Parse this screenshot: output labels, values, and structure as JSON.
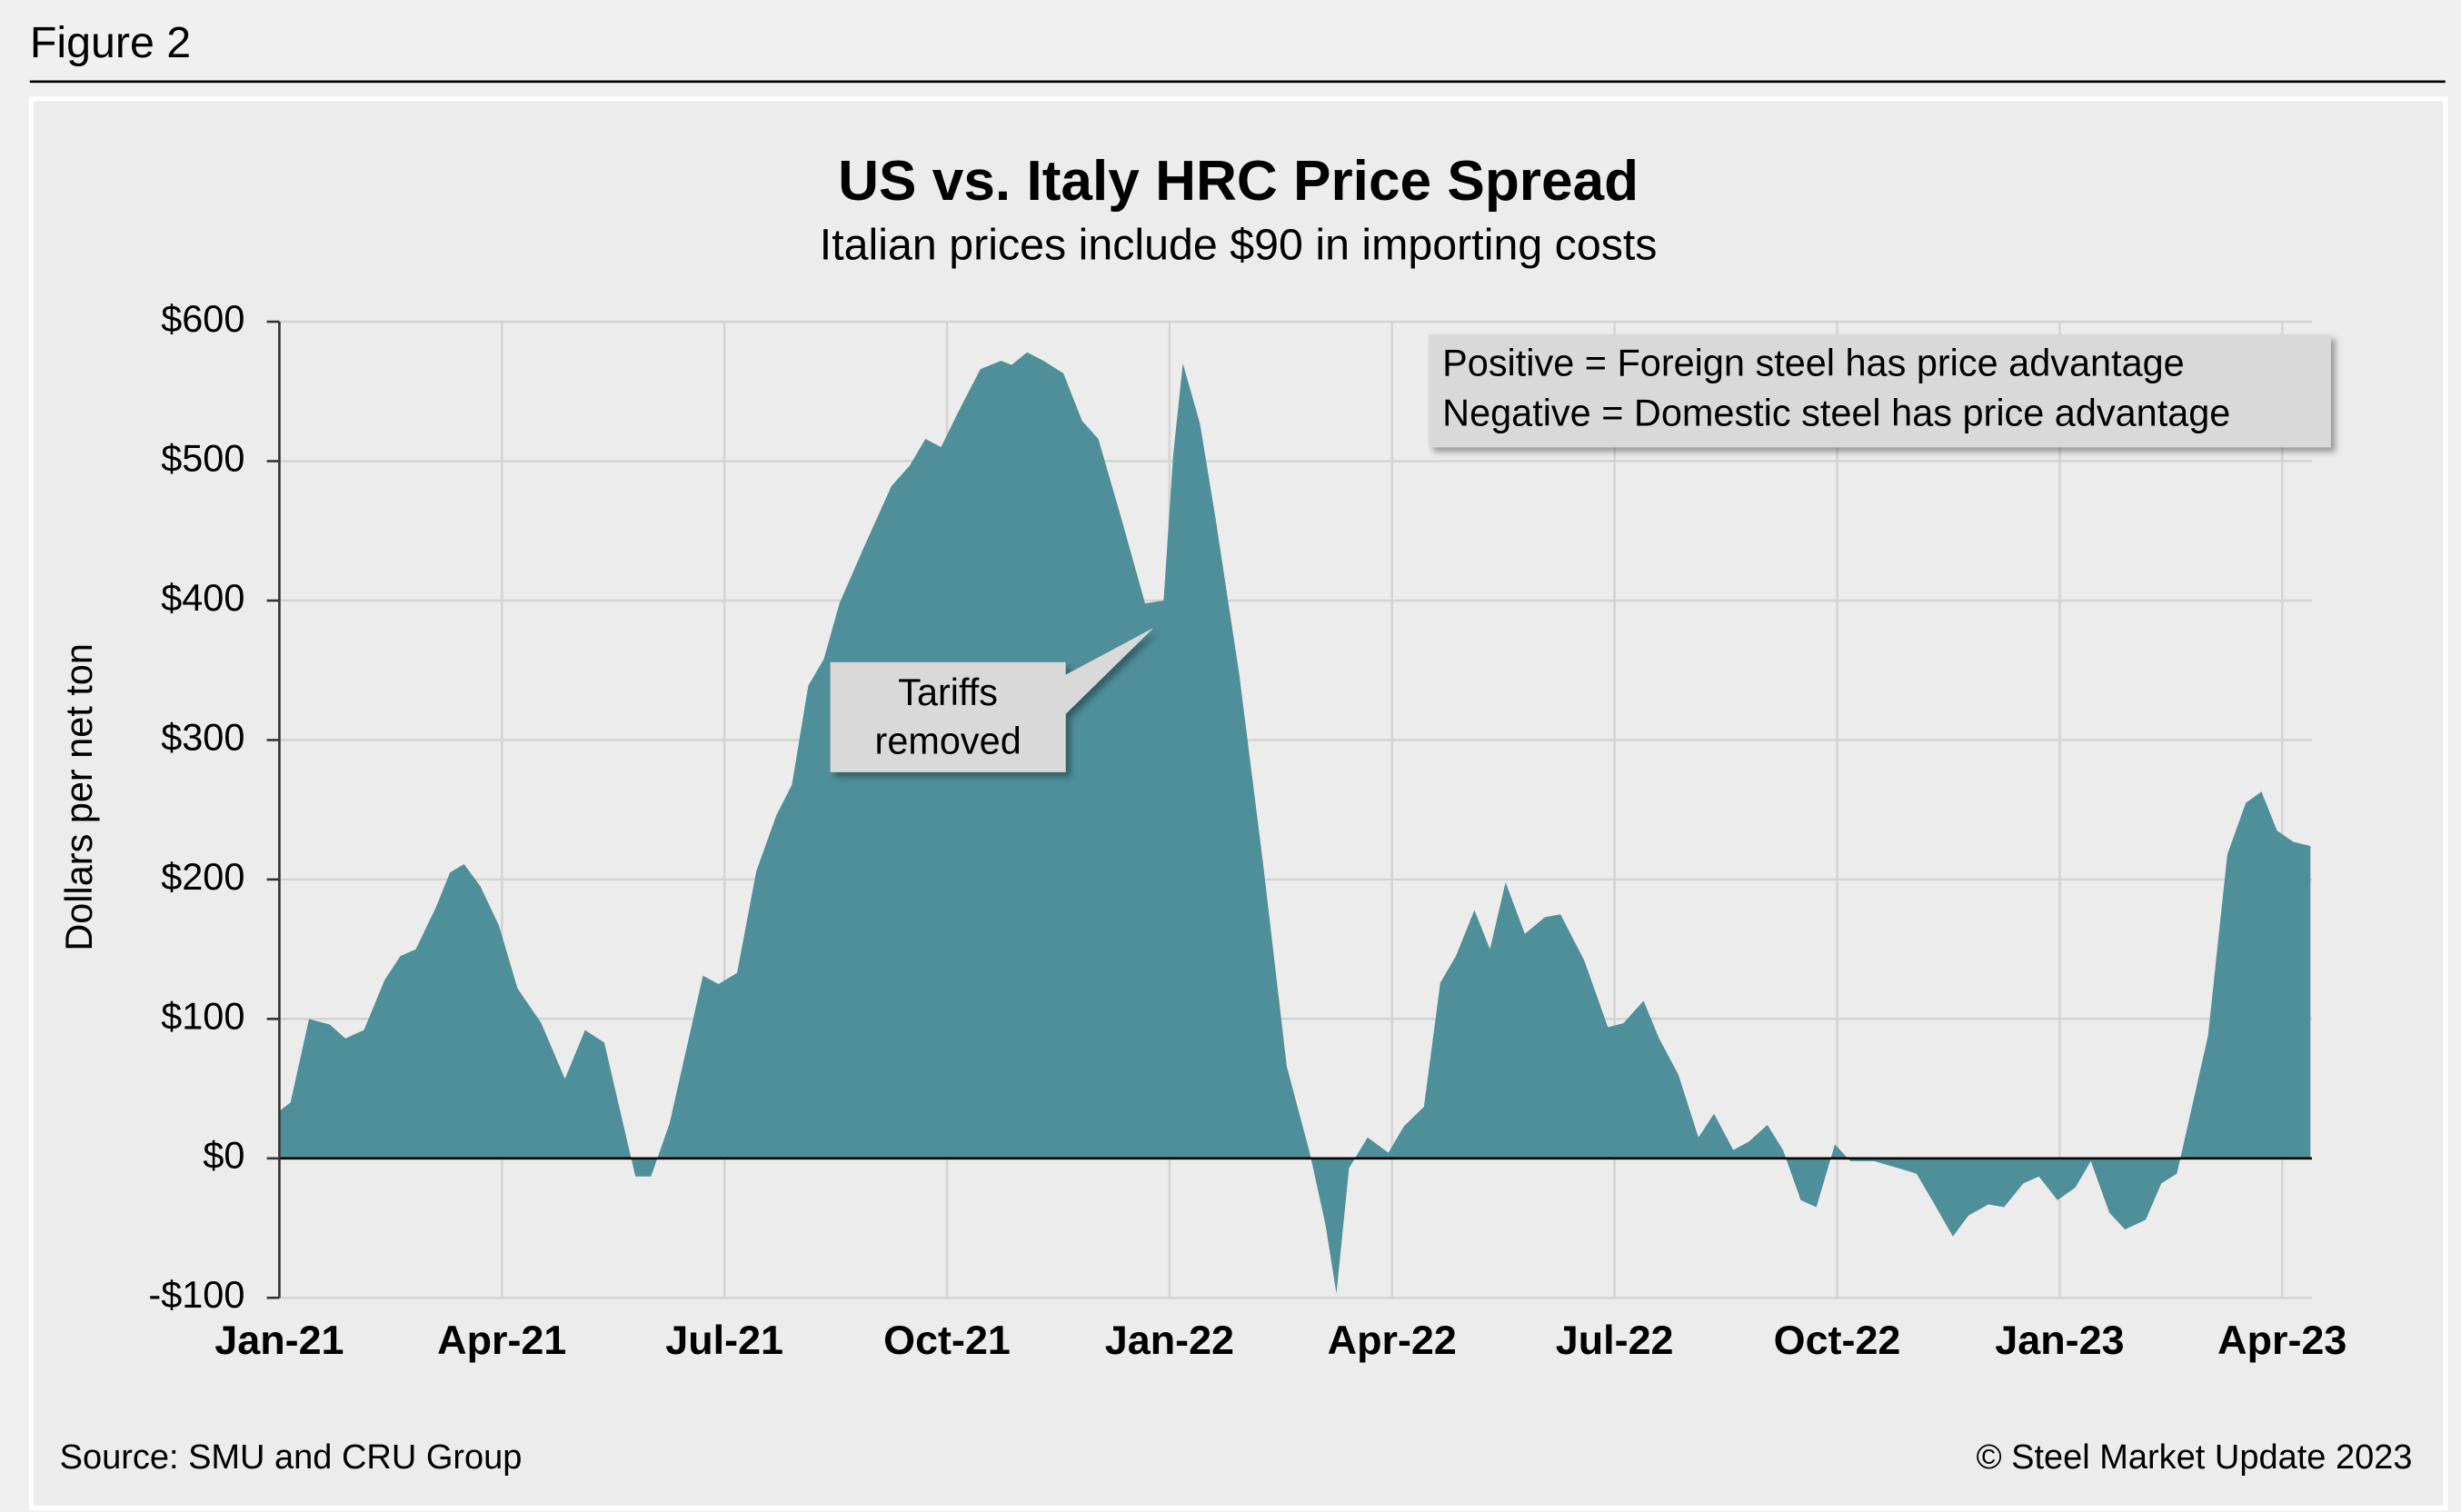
{
  "figure_label": "Figure 2",
  "chart_data": {
    "type": "area",
    "title": "US vs. Italy HRC Price Spread",
    "subtitle": "Italian prices include $90 in importing costs",
    "y_label": "Dollars per net ton",
    "color": "#4f8f99",
    "grid": true,
    "xlim": [
      0,
      27.4
    ],
    "ylim": [
      -100,
      600
    ],
    "xticks": [
      {
        "value": 0,
        "label": "Jan-21"
      },
      {
        "value": 3,
        "label": "Apr-21"
      },
      {
        "value": 6,
        "label": "Jul-21"
      },
      {
        "value": 9,
        "label": "Oct-21"
      },
      {
        "value": 12,
        "label": "Jan-22"
      },
      {
        "value": 15,
        "label": "Apr-22"
      },
      {
        "value": 18,
        "label": "Jul-22"
      },
      {
        "value": 21,
        "label": "Oct-22"
      },
      {
        "value": 24,
        "label": "Jan-23"
      },
      {
        "value": 27,
        "label": "Apr-23"
      }
    ],
    "yticks": [
      {
        "value": -100,
        "label": "-$100"
      },
      {
        "value": 0,
        "label": "$0"
      },
      {
        "value": 100,
        "label": "$100"
      },
      {
        "value": 200,
        "label": "$200"
      },
      {
        "value": 300,
        "label": "$300"
      },
      {
        "value": 400,
        "label": "$400"
      },
      {
        "value": 500,
        "label": "$500"
      },
      {
        "value": 600,
        "label": "$600"
      }
    ],
    "x": [
      0,
      0.15,
      0.4,
      0.68,
      0.89,
      1.14,
      1.42,
      1.63,
      1.84,
      2.11,
      2.3,
      2.49,
      2.71,
      2.96,
      3.21,
      3.53,
      3.85,
      4.12,
      4.38,
      4.8,
      5.01,
      5.26,
      5.71,
      5.92,
      6.17,
      6.43,
      6.7,
      6.91,
      7.13,
      7.34,
      7.55,
      7.87,
      8.25,
      8.5,
      8.71,
      8.92,
      9.13,
      9.45,
      9.73,
      9.87,
      10.08,
      10.3,
      10.57,
      10.82,
      11.04,
      11.35,
      11.67,
      11.92,
      12.05,
      12.18,
      12.41,
      12.62,
      12.94,
      13.26,
      13.58,
      13.89,
      14.1,
      14.25,
      14.42,
      14.67,
      14.95,
      15.16,
      15.43,
      15.65,
      15.86,
      16.11,
      16.32,
      16.53,
      16.79,
      17.06,
      17.27,
      17.59,
      17.91,
      18.12,
      18.39,
      18.6,
      18.86,
      19.13,
      19.34,
      19.6,
      19.81,
      20.06,
      20.27,
      20.51,
      20.72,
      20.97,
      21.18,
      21.5,
      21.82,
      22.07,
      22.28,
      22.56,
      22.77,
      23.04,
      23.25,
      23.51,
      23.72,
      23.97,
      24.21,
      24.42,
      24.67,
      24.88,
      25.16,
      25.37,
      25.58,
      26.0,
      26.26,
      26.51,
      26.72,
      26.93,
      27.15,
      27.38
    ],
    "values": [
      34,
      40,
      100,
      96,
      86,
      92,
      128,
      145,
      150,
      180,
      205,
      211,
      195,
      167,
      122,
      97,
      57,
      92,
      83,
      -13,
      -13,
      25,
      131,
      125,
      133,
      206,
      246,
      268,
      339,
      358,
      398,
      437,
      482,
      497,
      516,
      510,
      533,
      566,
      572,
      569,
      578,
      572,
      563,
      529,
      516,
      459,
      398,
      400,
      505,
      570,
      527,
      459,
      347,
      212,
      66,
      4,
      -47,
      -97,
      -7,
      15,
      4,
      23,
      37,
      126,
      145,
      178,
      150,
      198,
      161,
      173,
      175,
      142,
      94,
      97,
      113,
      86,
      60,
      15,
      32,
      6,
      12,
      24,
      6,
      -30,
      -35,
      10,
      -2,
      -2,
      -7,
      -11,
      -30,
      -56,
      -41,
      -33,
      -35,
      -18,
      -13,
      -30,
      -21,
      -2,
      -39,
      -51,
      -44,
      -18,
      -11,
      88,
      218,
      255,
      263,
      235,
      227,
      224
    ],
    "annotation": [
      "Tariffs",
      "removed"
    ],
    "note": [
      "Positive = Foreign steel has price advantage",
      "Negative = Domestic steel has price advantage"
    ],
    "source": "Source: SMU and CRU Group",
    "copyright": "© Steel Market Update 2023"
  }
}
